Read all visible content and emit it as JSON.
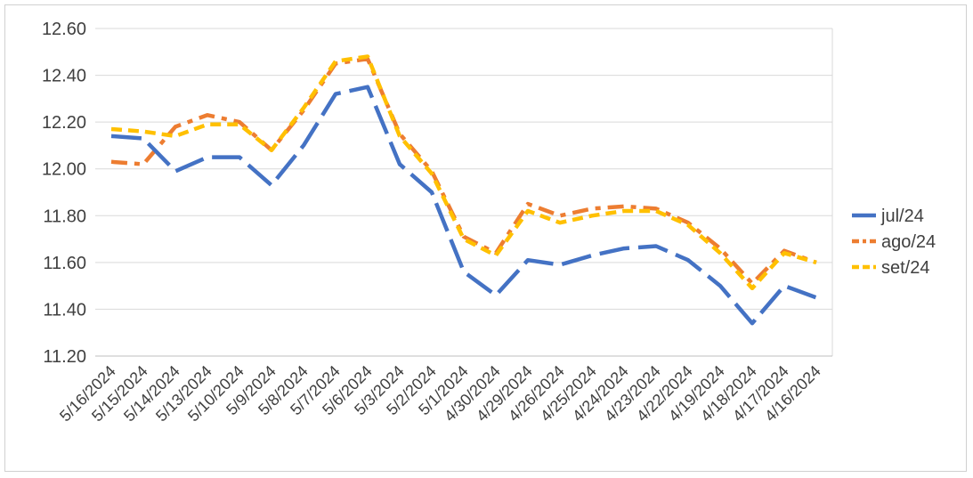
{
  "chart_data": {
    "type": "line",
    "categories": [
      "5/16/2024",
      "5/15/2024",
      "5/14/2024",
      "5/13/2024",
      "5/10/2024",
      "5/9/2024",
      "5/8/2024",
      "5/7/2024",
      "5/6/2024",
      "5/3/2024",
      "5/2/2024",
      "5/1/2024",
      "4/30/2024",
      "4/29/2024",
      "4/26/2024",
      "4/25/2024",
      "4/24/2024",
      "4/23/2024",
      "4/22/2024",
      "4/19/2024",
      "4/18/2024",
      "4/17/2024",
      "4/16/2024"
    ],
    "ylim": [
      11.2,
      12.6
    ],
    "yticks": [
      "11.20",
      "11.40",
      "11.60",
      "11.80",
      "12.00",
      "12.20",
      "12.40",
      "12.60"
    ],
    "grid": true,
    "legend_position": "right",
    "series": [
      {
        "name": "jul/24",
        "color": "#4472c4",
        "dash": "long-dash",
        "values": [
          12.14,
          12.13,
          11.99,
          12.05,
          12.05,
          11.93,
          12.1,
          12.32,
          12.35,
          12.02,
          11.9,
          11.56,
          11.46,
          11.61,
          11.59,
          11.63,
          11.66,
          11.67,
          11.61,
          11.5,
          11.34,
          11.5,
          11.45
        ]
      },
      {
        "name": "ago/24",
        "color": "#ed7d31",
        "dash": "dash-dot",
        "values": [
          12.03,
          12.02,
          12.18,
          12.23,
          12.2,
          12.08,
          12.25,
          12.45,
          12.47,
          12.15,
          11.99,
          11.71,
          11.64,
          11.85,
          11.8,
          11.83,
          11.84,
          11.83,
          11.77,
          11.66,
          11.51,
          11.65,
          11.6
        ]
      },
      {
        "name": "set/24",
        "color": "#ffc000",
        "dash": "dash",
        "values": [
          12.17,
          12.16,
          12.14,
          12.19,
          12.19,
          12.08,
          12.26,
          12.46,
          12.48,
          12.14,
          11.98,
          11.7,
          11.63,
          11.82,
          11.77,
          11.8,
          11.82,
          11.82,
          11.76,
          11.64,
          11.49,
          11.64,
          11.6
        ]
      }
    ]
  }
}
